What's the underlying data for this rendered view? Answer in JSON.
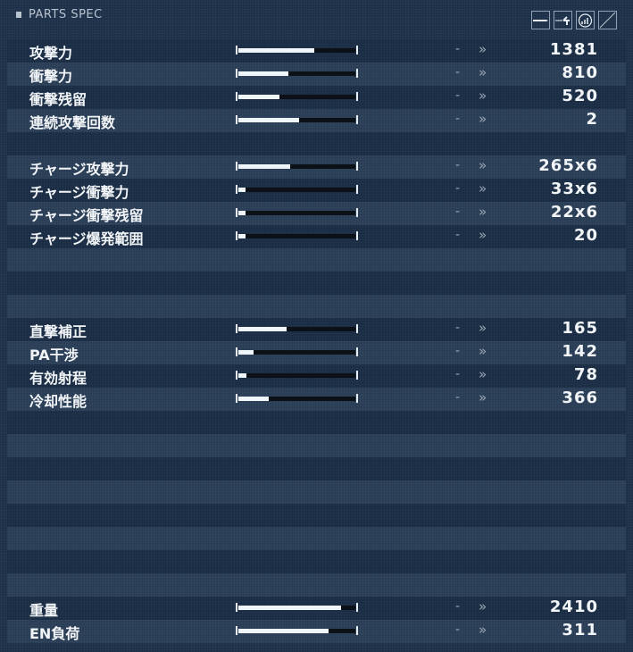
{
  "header": {
    "title": "PARTS SPEC"
  },
  "toolbar_icons": [
    "weapon-blade-icon",
    "weapon-arrow-icon",
    "charge-level-icon",
    "diagonal-slash-icon"
  ],
  "colors": {
    "background": "#1d3049",
    "bar_fill": "#eef6fa",
    "bar_track": "#0c1118"
  },
  "rows": [
    {
      "label": "攻撃力",
      "value": "1381",
      "bar": 0.65,
      "dash": "-",
      "arrow": "»"
    },
    {
      "label": "衝撃力",
      "value": "810",
      "bar": 0.43,
      "dash": "-",
      "arrow": "»"
    },
    {
      "label": "衝撃残留",
      "value": "520",
      "bar": 0.35,
      "dash": "-",
      "arrow": "»"
    },
    {
      "label": "連続攻撃回数",
      "value": "2",
      "bar": 0.52,
      "dash": "-",
      "arrow": "»"
    },
    null,
    {
      "label": "チャージ攻撃力",
      "value": "265x6",
      "bar": 0.44,
      "dash": "-",
      "arrow": "»"
    },
    {
      "label": "チャージ衝撃力",
      "value": "33x6",
      "bar": 0.06,
      "dash": "-",
      "arrow": "»"
    },
    {
      "label": "チャージ衝撃残留",
      "value": "22x6",
      "bar": 0.06,
      "dash": "-",
      "arrow": "»"
    },
    {
      "label": "チャージ爆発範囲",
      "value": "20",
      "bar": 0.06,
      "dash": "-",
      "arrow": "»"
    },
    null,
    null,
    null,
    {
      "label": "直撃補正",
      "value": "165",
      "bar": 0.41,
      "dash": "-",
      "arrow": "»"
    },
    {
      "label": "PA干渉",
      "value": "142",
      "bar": 0.13,
      "dash": "-",
      "arrow": "»"
    },
    {
      "label": "有効射程",
      "value": "78",
      "bar": 0.07,
      "dash": "-",
      "arrow": "»"
    },
    {
      "label": "冷却性能",
      "value": "366",
      "bar": 0.26,
      "dash": "-",
      "arrow": "»"
    },
    null,
    null,
    null,
    null,
    null,
    null,
    null,
    null,
    {
      "label": "重量",
      "value": "2410",
      "bar": 0.88,
      "dash": "-",
      "arrow": "»"
    },
    {
      "label": "EN負荷",
      "value": "311",
      "bar": 0.77,
      "dash": "-",
      "arrow": "»"
    }
  ]
}
